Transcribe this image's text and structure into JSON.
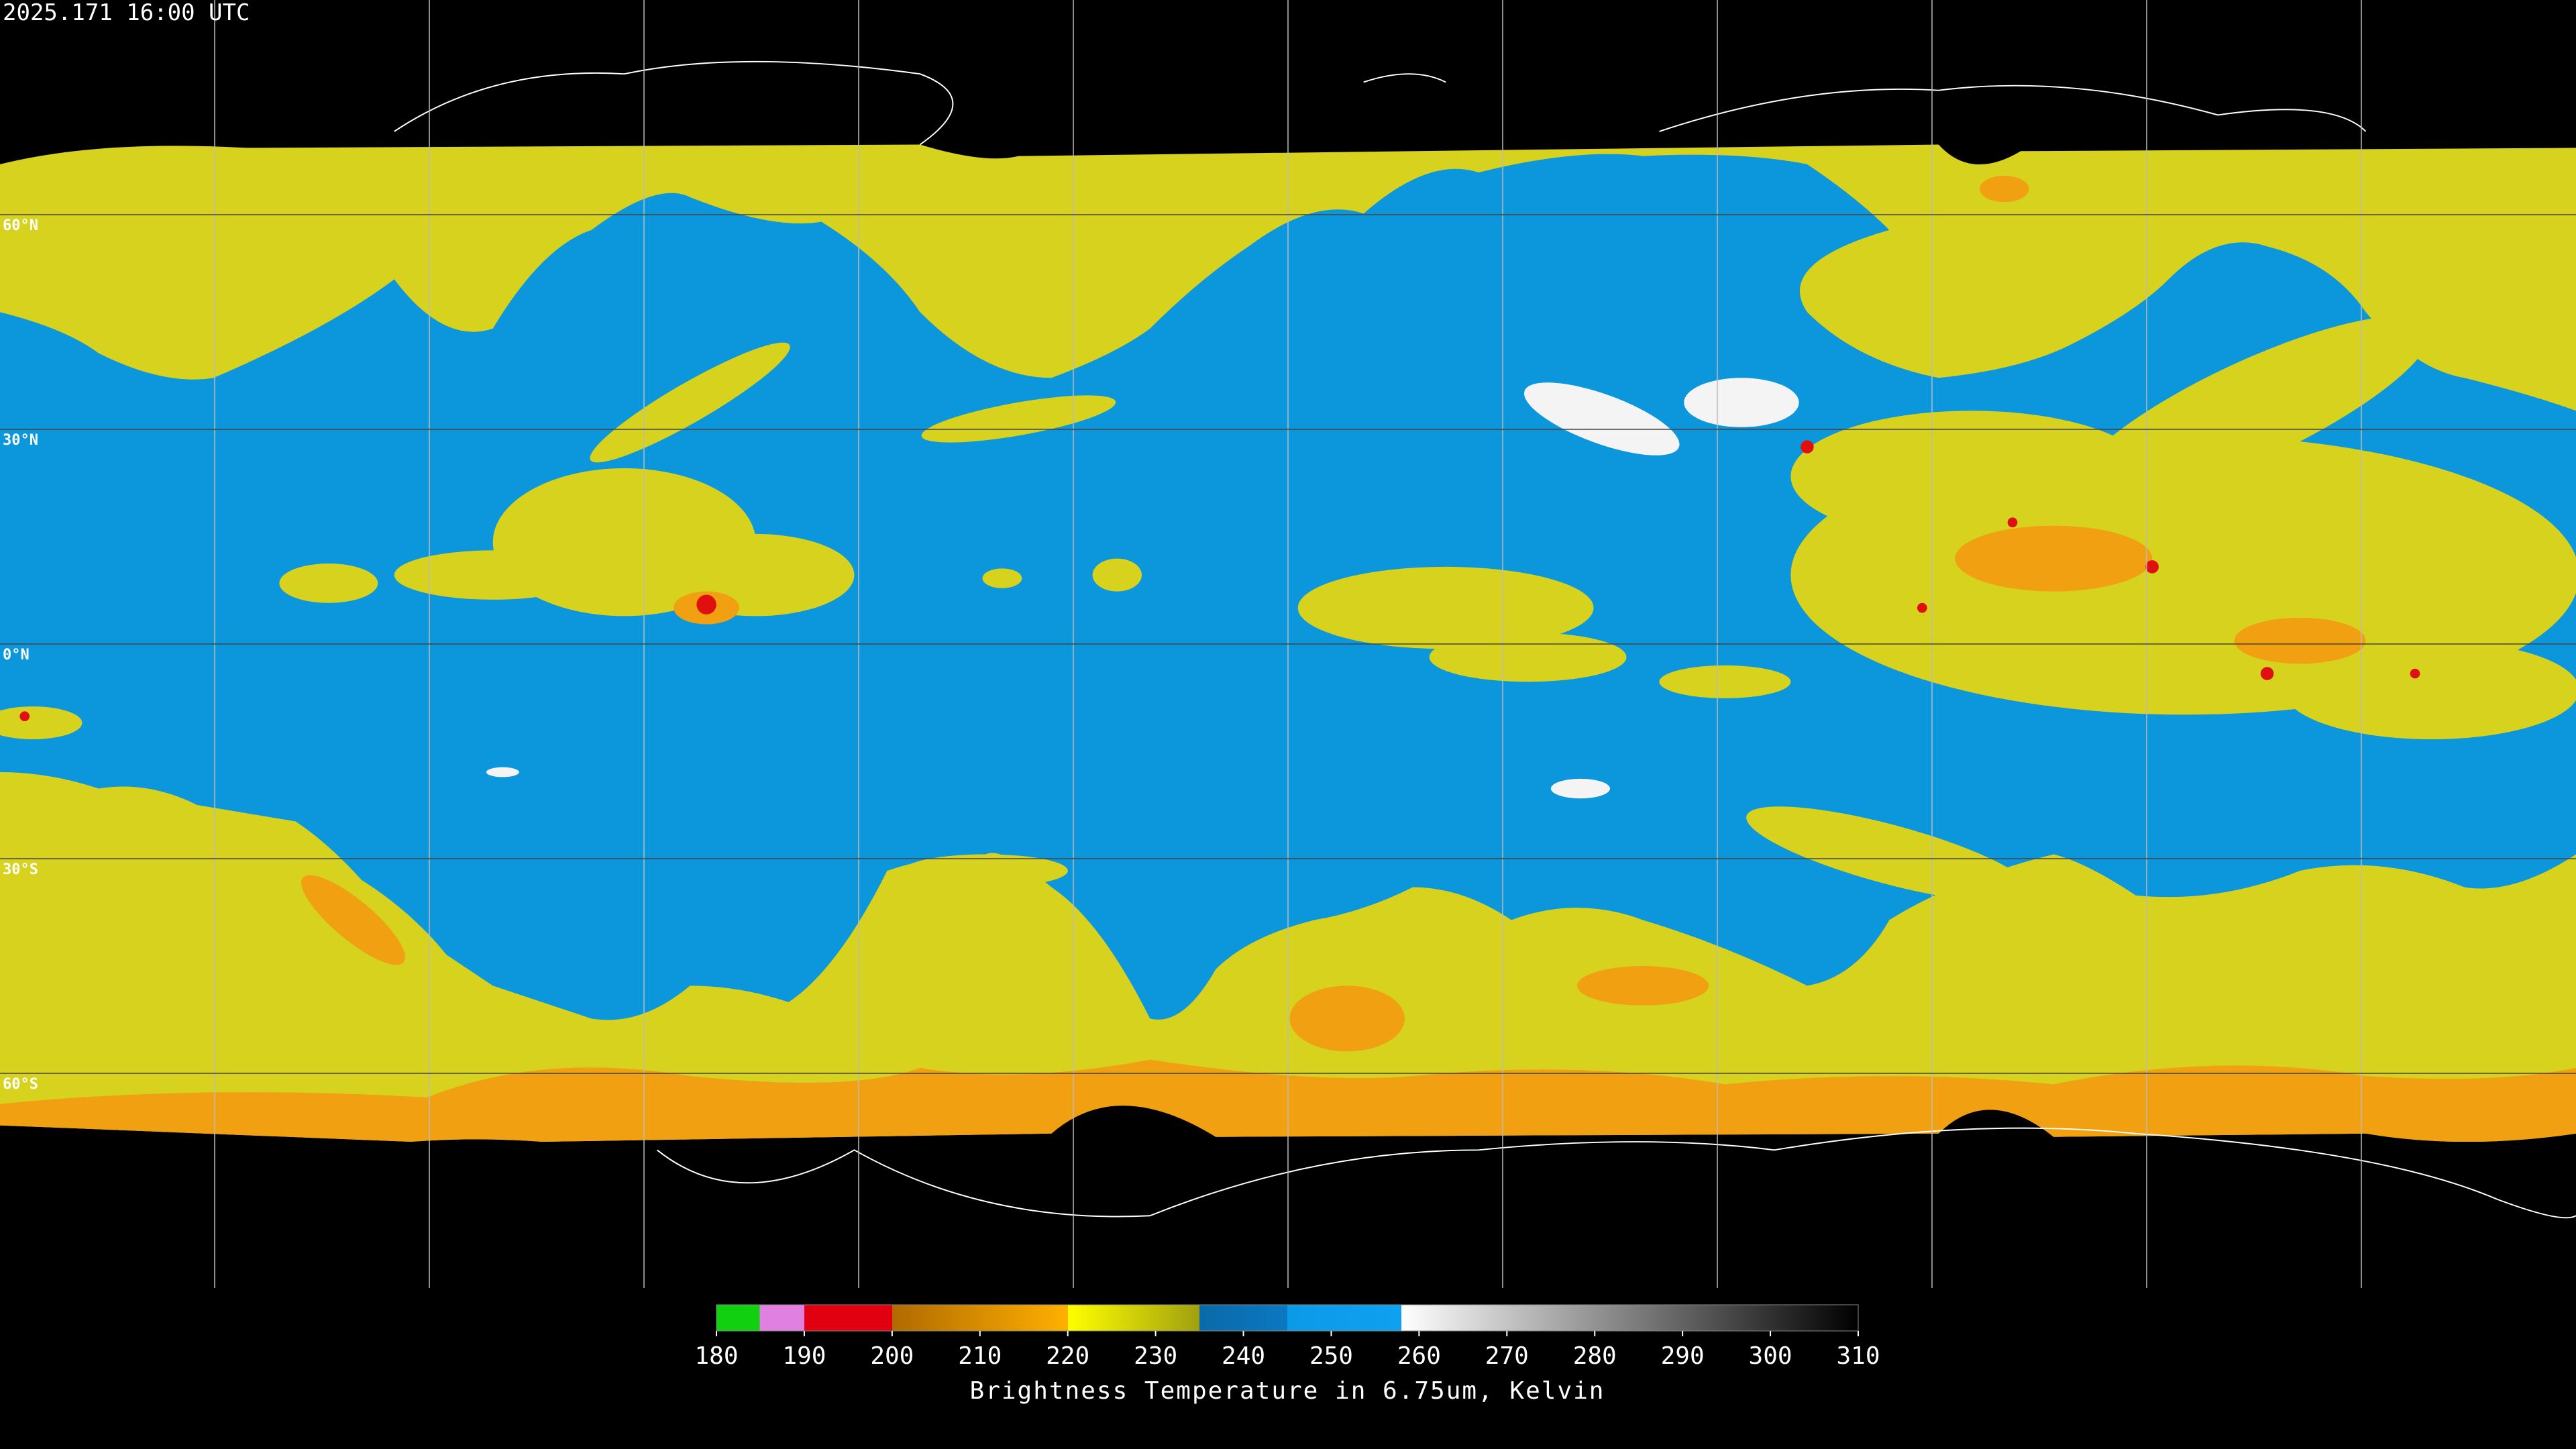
{
  "header": {
    "title": "2025.171 16:00 UTC"
  },
  "map": {
    "latlim": [
      -90,
      90
    ],
    "grid": true,
    "lat_ticks": [
      {
        "value": 60,
        "label": "60°N"
      },
      {
        "value": 30,
        "label": "30°N"
      },
      {
        "value": 0,
        "label": "0°N"
      },
      {
        "value": -30,
        "label": "30°S"
      },
      {
        "value": -60,
        "label": "60°S"
      }
    ]
  },
  "colorbar": {
    "lim": [
      180,
      310
    ],
    "ticks": [
      180,
      190,
      200,
      210,
      220,
      230,
      240,
      250,
      260,
      270,
      280,
      290,
      300,
      310
    ],
    "label": "Brightness Temperature in 6.75um, Kelvin"
  }
}
